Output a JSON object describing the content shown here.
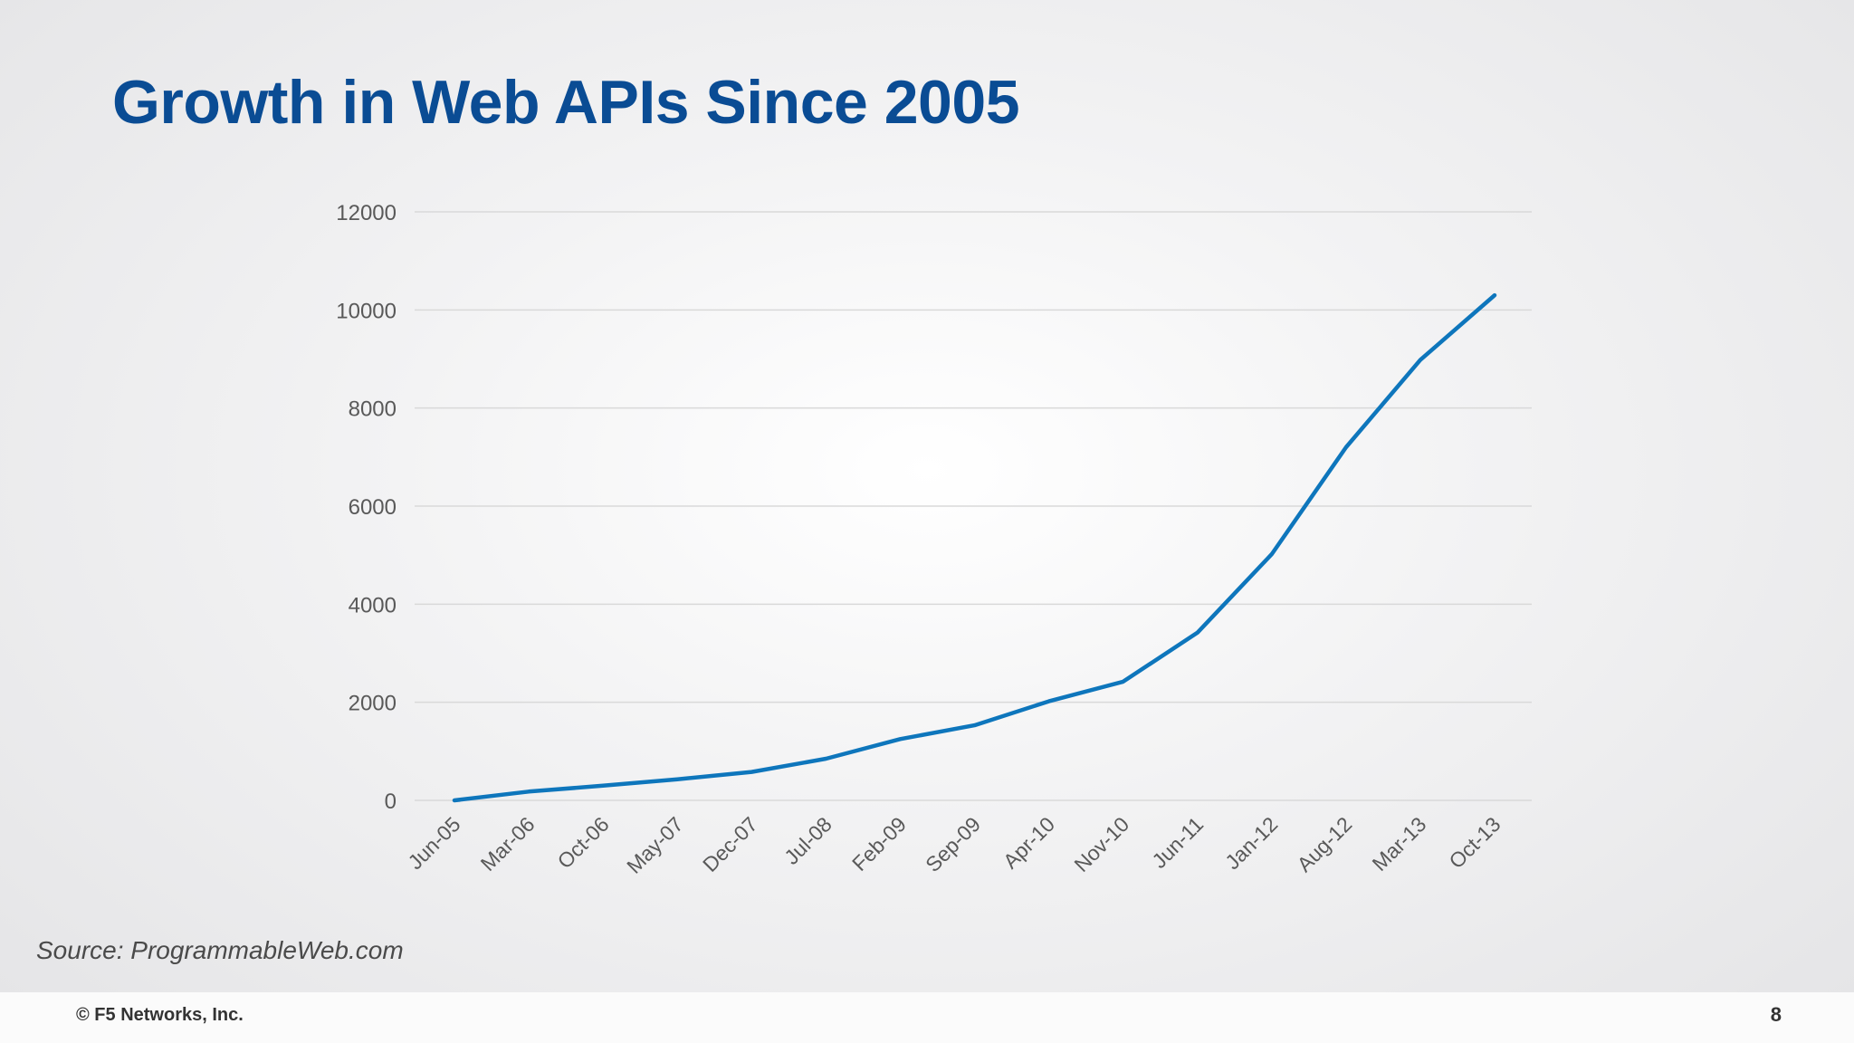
{
  "slide": {
    "title": "Growth in Web APIs Since 2005",
    "source": "Source: ProgrammableWeb.com",
    "copyright": "© F5 Networks, Inc.",
    "page_number": "8"
  },
  "chart_data": {
    "type": "line",
    "title": "",
    "xlabel": "",
    "ylabel": "",
    "x": [
      "Jun-05",
      "Mar-06",
      "Oct-06",
      "May-07",
      "Dec-07",
      "Jul-08",
      "Feb-09",
      "Sep-09",
      "Apr-10",
      "Nov-10",
      "Jun-11",
      "Jan-12",
      "Aug-12",
      "Mar-13",
      "Oct-13"
    ],
    "series": [
      {
        "values": [
          0,
          180,
          300,
          430,
          580,
          850,
          1250,
          1530,
          2020,
          2420,
          3420,
          5020,
          7200,
          8980,
          10300
        ]
      }
    ],
    "ylim": [
      0,
      12000
    ],
    "yticks": [
      0,
      2000,
      4000,
      6000,
      8000,
      10000,
      12000
    ],
    "grid": true,
    "legend": "none",
    "colors": {
      "line": "#0e76bc",
      "grid": "#d9d9d9",
      "tick_text": "#595959"
    }
  }
}
